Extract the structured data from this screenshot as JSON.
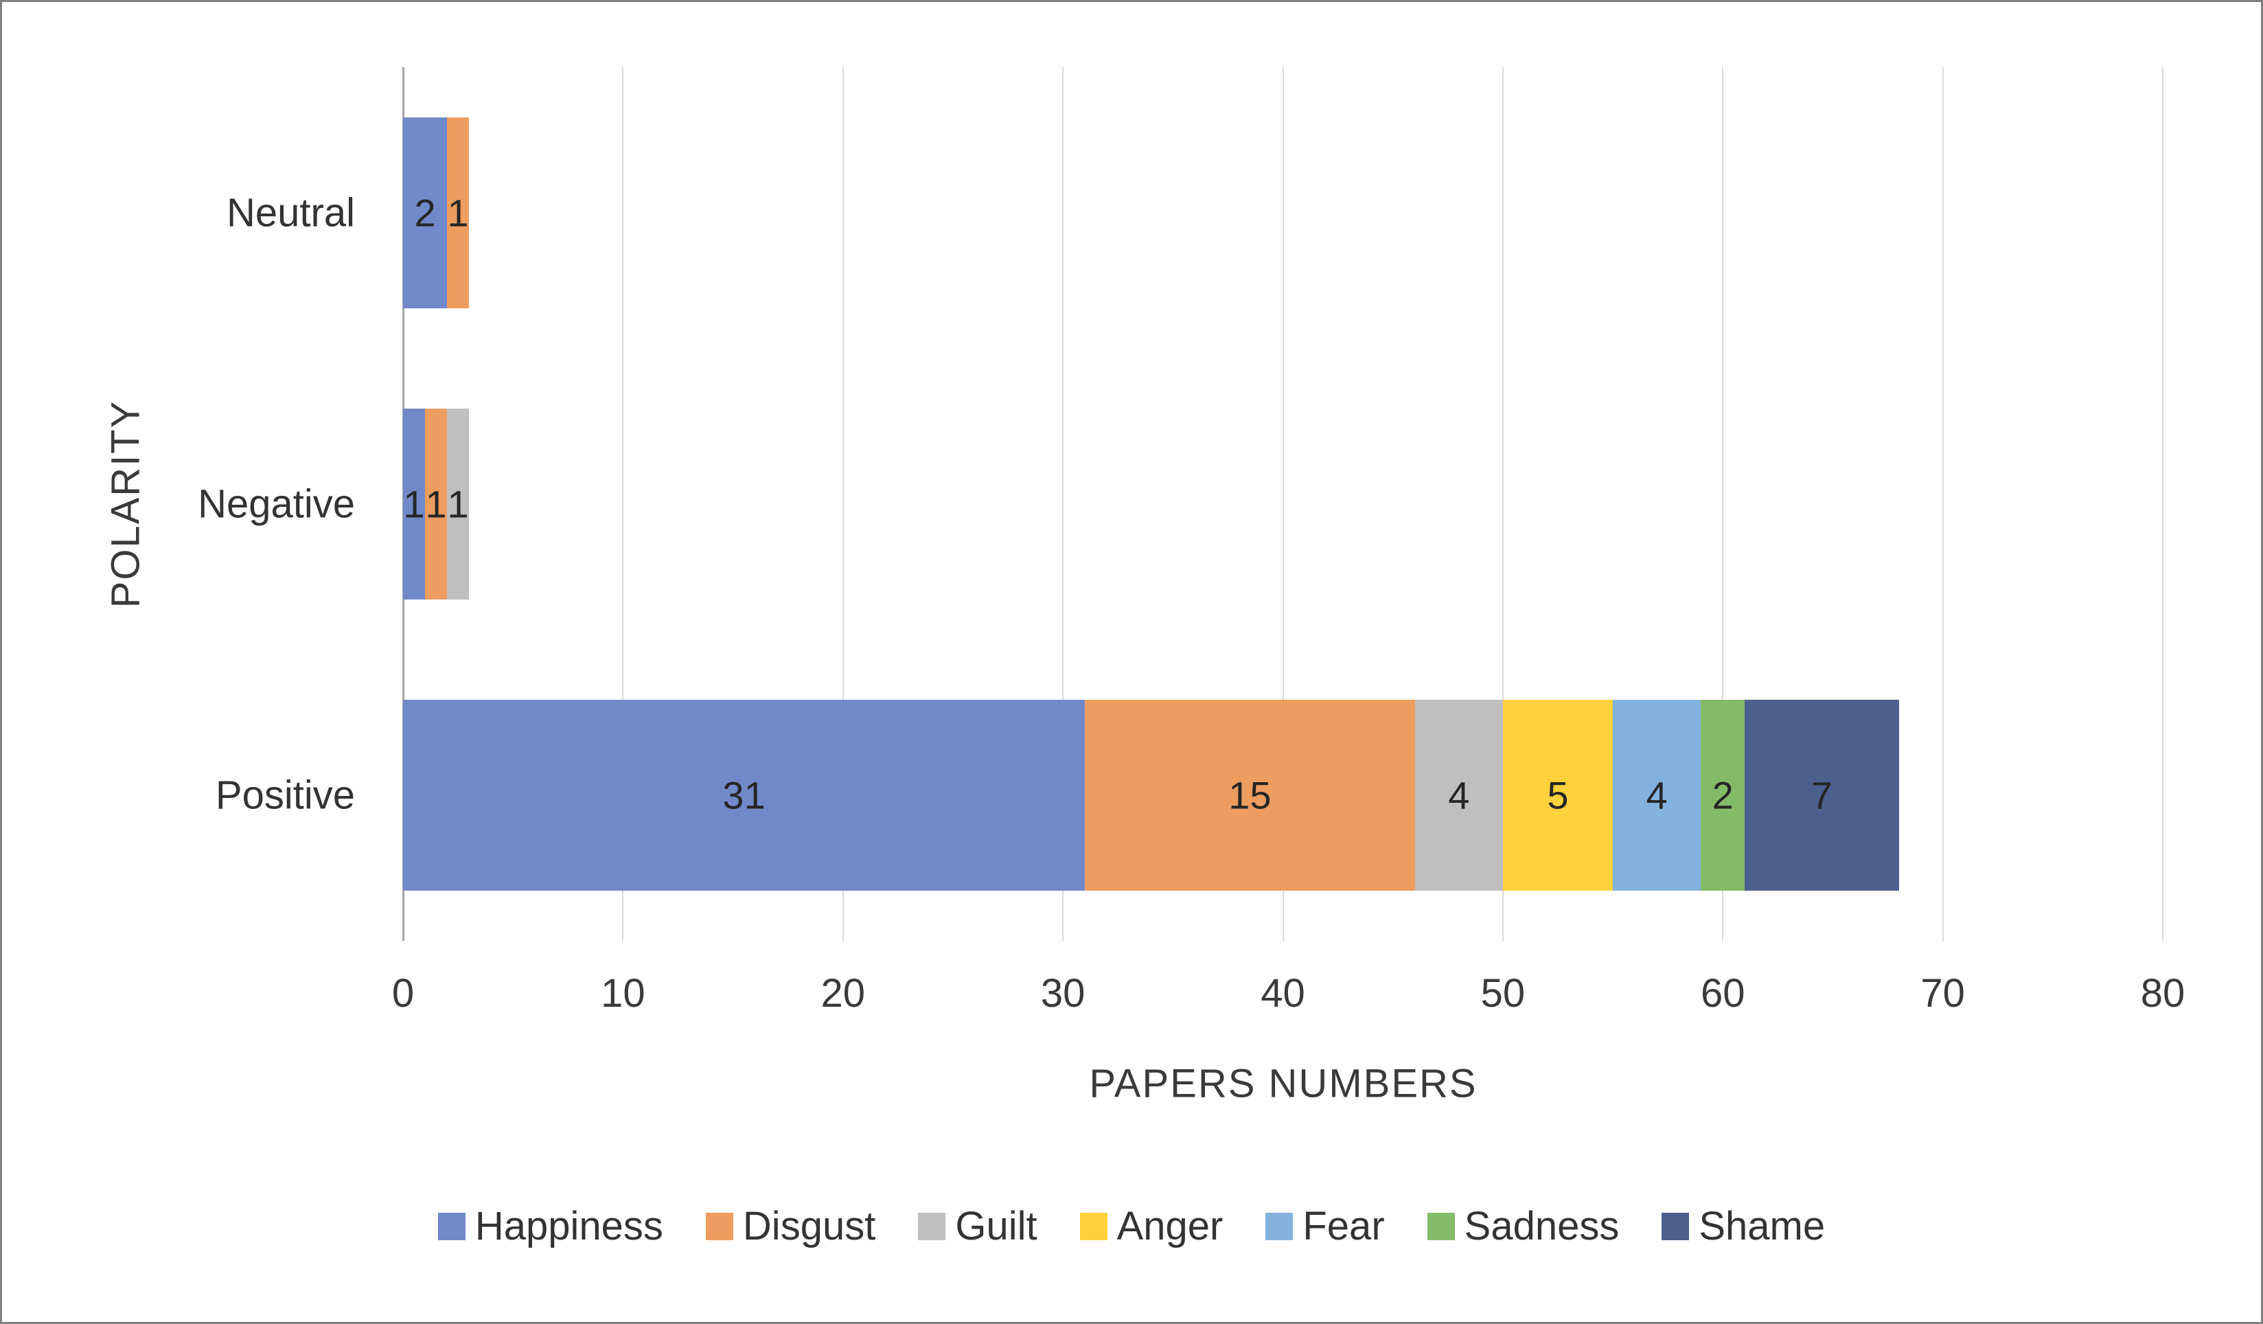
{
  "figure": {
    "background": "#ffffff",
    "border_color": "#808080"
  },
  "chart_data": {
    "type": "bar",
    "orientation": "horizontal",
    "stacked": true,
    "title": "",
    "xlabel": "PAPERS NUMBERS",
    "ylabel": "POLARITY",
    "categories": [
      "Neutral",
      "Negative",
      "Positive"
    ],
    "series": [
      {
        "name": "Happiness",
        "color": "#7289C9",
        "values": [
          2,
          1,
          31
        ]
      },
      {
        "name": "Disgust",
        "color": "#ED9D60",
        "values": [
          1,
          1,
          15
        ]
      },
      {
        "name": "Guilt",
        "color": "#BFBFBF",
        "values": [
          0,
          1,
          4
        ]
      },
      {
        "name": "Anger",
        "color": "#FFD13C",
        "values": [
          0,
          0,
          5
        ]
      },
      {
        "name": "Fear",
        "color": "#83B2DE",
        "values": [
          0,
          0,
          4
        ]
      },
      {
        "name": "Sadness",
        "color": "#84BB68",
        "values": [
          0,
          0,
          2
        ]
      },
      {
        "name": "Shame",
        "color": "#4C608E",
        "values": [
          0,
          0,
          7
        ]
      }
    ],
    "totals": {
      "Neutral": 3,
      "Negative": 3,
      "Positive": 68
    },
    "xlim": [
      0,
      80
    ],
    "xticks": [
      0,
      10,
      20,
      30,
      40,
      50,
      60,
      70,
      80
    ],
    "grid": true,
    "gridline_color": "#d9d9d9",
    "axis_line_color": "#a6a6a6",
    "data_labels": true,
    "legend_position": "bottom"
  }
}
